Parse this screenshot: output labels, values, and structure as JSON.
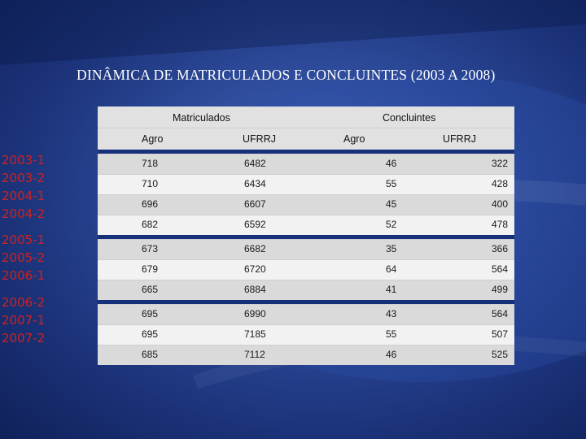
{
  "slide": {
    "title": "DINÂMICA DE MATRICULADOS E CONCLUINTES (2003 A 2008)"
  },
  "table": {
    "group_headers": {
      "matriculados": "Matriculados",
      "concluintes": "Concluintes"
    },
    "column_headers": {
      "agro": "Agro",
      "ufrrj": "UFRRJ",
      "c_agro": "Agro",
      "c_ufrrj": "UFRRJ"
    },
    "rows": [
      {
        "period": "2003-1",
        "agro": "718",
        "ufrrj": "6482",
        "c_agro": "46",
        "c_ufrrj": "322"
      },
      {
        "period": "2003-2",
        "agro": "710",
        "ufrrj": "6434",
        "c_agro": "55",
        "c_ufrrj": "428"
      },
      {
        "period": "2004-1",
        "agro": "696",
        "ufrrj": "6607",
        "c_agro": "45",
        "c_ufrrj": "400"
      },
      {
        "period": "2004-2",
        "agro": "682",
        "ufrrj": "6592",
        "c_agro": "52",
        "c_ufrrj": "478"
      },
      {
        "period": "2005-1",
        "agro": "673",
        "ufrrj": "6682",
        "c_agro": "35",
        "c_ufrrj": "366"
      },
      {
        "period": "2005-2",
        "agro": "679",
        "ufrrj": "6720",
        "c_agro": "64",
        "c_ufrrj": "564"
      },
      {
        "period": "2006-1",
        "agro": "665",
        "ufrrj": "6884",
        "c_agro": "41",
        "c_ufrrj": "499"
      },
      {
        "period": "2006-2",
        "agro": "695",
        "ufrrj": "6990",
        "c_agro": "43",
        "c_ufrrj": "564"
      },
      {
        "period": "2007-1",
        "agro": "695",
        "ufrrj": "7185",
        "c_agro": "55",
        "c_ufrrj": "507"
      },
      {
        "period": "2007-2",
        "agro": "685",
        "ufrrj": "7112",
        "c_agro": "46",
        "c_ufrrj": "525"
      }
    ]
  }
}
